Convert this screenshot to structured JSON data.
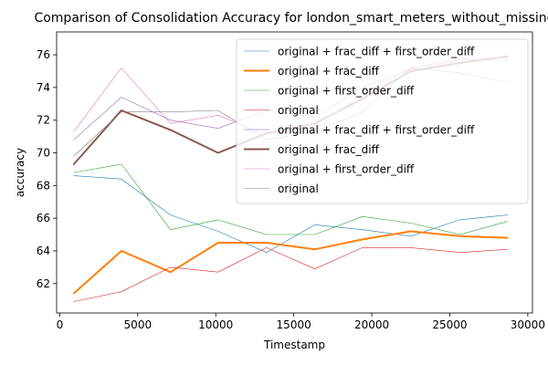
{
  "chart_data": {
    "type": "line",
    "title": "Comparison of Consolidation Accuracy for london_smart_meters_without_missing",
    "xlabel": "Timestamp",
    "ylabel": "accuracy",
    "xlim": [
      -200,
      30300
    ],
    "ylim": [
      60.2,
      77.4
    ],
    "x_ticks": [
      0,
      5000,
      10000,
      15000,
      20000,
      25000,
      30000
    ],
    "y_ticks": [
      62,
      64,
      66,
      68,
      70,
      72,
      74,
      76
    ],
    "grid": false,
    "legend_position": "top-right",
    "x": [
      900,
      3950,
      7100,
      10150,
      13250,
      16350,
      19400,
      22500,
      25650,
      28700
    ],
    "series": [
      {
        "name": "original + frac_diff + first_order_diff",
        "color": "#1f77b4",
        "width": 0.6,
        "values": [
          68.6,
          68.4,
          66.2,
          65.2,
          63.9,
          65.6,
          65.3,
          64.9,
          65.9,
          66.2
        ]
      },
      {
        "name": "original + frac_diff",
        "color": "#ff7f0e",
        "width": 2.0,
        "values": [
          61.4,
          64.0,
          62.7,
          64.5,
          64.5,
          64.1,
          64.7,
          65.2,
          64.9,
          64.8
        ]
      },
      {
        "name": "original + first_order_diff",
        "color": "#2ca02c",
        "width": 0.6,
        "values": [
          68.8,
          69.3,
          65.3,
          65.9,
          65.0,
          65.0,
          66.1,
          65.7,
          65.0,
          65.8
        ]
      },
      {
        "name": "original",
        "color": "#d62728",
        "width": 0.6,
        "values": [
          60.9,
          61.5,
          63.0,
          62.7,
          64.2,
          62.9,
          64.2,
          64.2,
          63.9,
          64.1
        ]
      },
      {
        "name": "original + frac_diff + first_order_diff",
        "color": "#9467bd",
        "width": 0.6,
        "values": [
          70.8,
          73.4,
          72.0,
          71.5,
          72.6,
          72.2,
          74.0,
          75.1,
          75.7,
          75.7
        ]
      },
      {
        "name": "original + frac_diff",
        "color": "#8c564b",
        "width": 2.0,
        "values": [
          69.3,
          72.6,
          71.4,
          70.0,
          71.2,
          71.8,
          73.3,
          75.0,
          75.5,
          75.9
        ]
      },
      {
        "name": "original + first_order_diff",
        "color": "#e377c2",
        "width": 0.6,
        "values": [
          71.3,
          75.2,
          71.8,
          72.3,
          71.1,
          71.7,
          73.5,
          75.2,
          75.8,
          75.8
        ]
      },
      {
        "name": "original",
        "color": "#7f7f7f",
        "width": 0.6,
        "values": [
          69.8,
          72.5,
          72.5,
          72.6,
          70.8,
          71.3,
          72.5,
          75.2,
          74.9,
          74.3
        ]
      }
    ]
  }
}
